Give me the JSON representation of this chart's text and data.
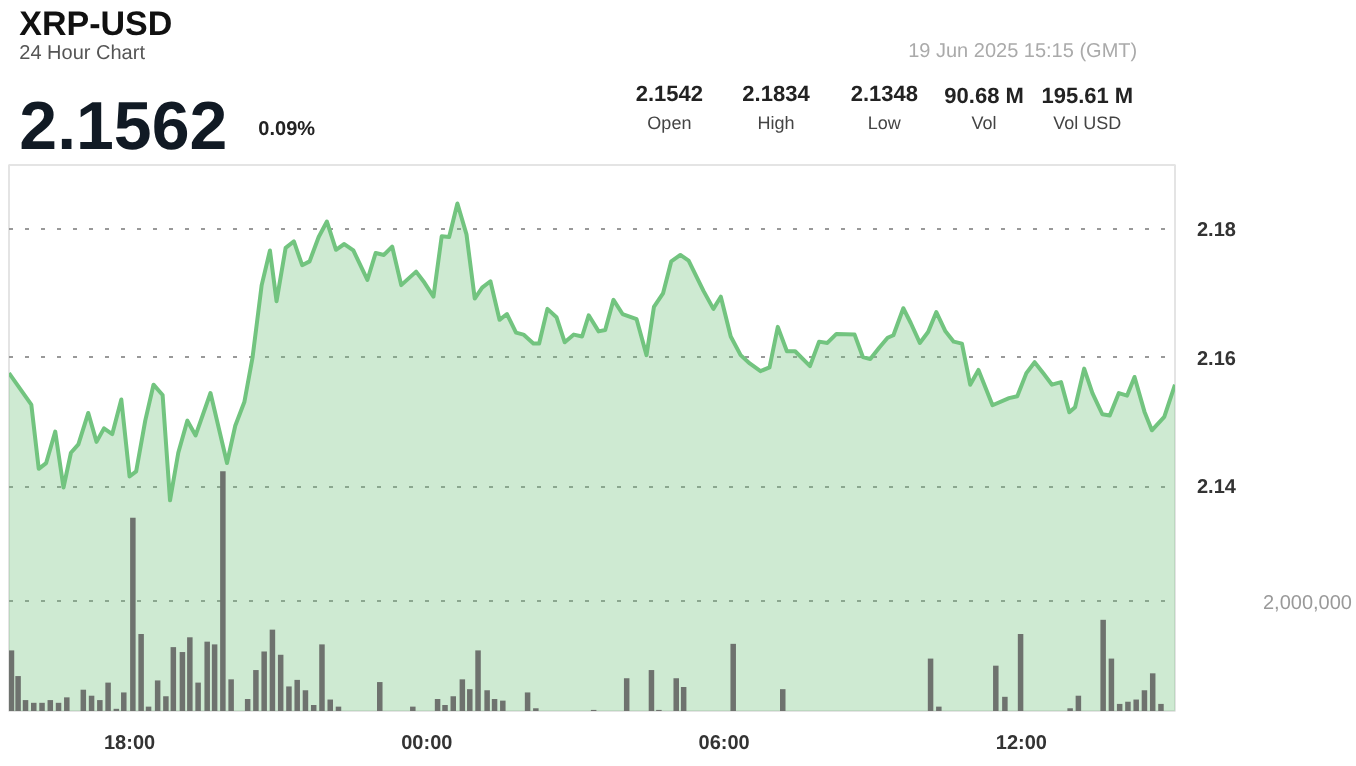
{
  "chart_data": {
    "type": "area",
    "title": "XRP-USD",
    "subtitle": "24 Hour Chart",
    "annotations": [
      "2.1562",
      "0.09%",
      "19 Jun 2025 15:15 (GMT)",
      "2.1542",
      "Open",
      "2.1834",
      "High",
      "2.1348",
      "Low",
      "90.68 M",
      "Vol",
      "195.61 M",
      "Vol USD"
    ],
    "xlim": [
      "2025-06-18T15:34",
      "2025-06-19T15:06"
    ],
    "xticks": [
      {
        "value": "2025-06-18T18:00",
        "label": "18:00"
      },
      {
        "value": "2025-06-19T00:00",
        "label": "00:00"
      },
      {
        "value": "2025-06-19T06:00",
        "label": "06:00"
      },
      {
        "value": "2025-06-19T12:00",
        "label": "12:00"
      }
    ],
    "ylim": [
      2.105,
      2.19
    ],
    "yticks": [
      2.14,
      2.16,
      2.18
    ],
    "y2lim": [
      0,
      10000000
    ],
    "y2ticks": [
      {
        "value": 2000000,
        "label": "2,000,000"
      }
    ],
    "grid": "y",
    "series": [
      {
        "color": "#72c47f",
        "x": [
          "2025-06-18T15:34",
          "2025-06-18T16:01",
          "2025-06-18T16:10",
          "2025-06-18T16:19",
          "2025-06-18T16:30",
          "2025-06-18T16:40",
          "2025-06-18T16:49",
          "2025-06-18T16:58",
          "2025-06-18T17:10",
          "2025-06-18T17:20",
          "2025-06-18T17:29",
          "2025-06-18T17:39",
          "2025-06-18T17:50",
          "2025-06-18T18:00",
          "2025-06-18T18:08",
          "2025-06-18T18:19",
          "2025-06-18T18:29",
          "2025-06-18T18:40",
          "2025-06-18T18:49",
          "2025-06-18T18:59",
          "2025-06-18T19:10",
          "2025-06-18T19:20",
          "2025-06-18T19:38",
          "2025-06-18T19:58",
          "2025-06-18T20:08",
          "2025-06-18T20:19",
          "2025-06-18T20:29",
          "2025-06-18T20:40",
          "2025-06-18T20:50",
          "2025-06-18T20:58",
          "2025-06-18T21:09",
          "2025-06-18T21:19",
          "2025-06-18T21:29",
          "2025-06-18T21:38",
          "2025-06-18T21:49",
          "2025-06-18T21:59",
          "2025-06-18T22:10",
          "2025-06-18T22:20",
          "2025-06-18T22:31",
          "2025-06-18T22:48",
          "2025-06-18T22:58",
          "2025-06-18T23:08",
          "2025-06-18T23:18",
          "2025-06-18T23:29",
          "2025-06-18T23:47",
          "2025-06-18T23:57",
          "2025-06-19T00:08",
          "2025-06-19T00:18",
          "2025-06-19T00:27",
          "2025-06-19T00:37",
          "2025-06-19T00:48",
          "2025-06-19T00:58",
          "2025-06-19T01:07",
          "2025-06-19T01:17",
          "2025-06-19T01:28",
          "2025-06-19T01:37",
          "2025-06-19T01:48",
          "2025-06-19T01:57",
          "2025-06-19T02:09",
          "2025-06-19T02:16",
          "2025-06-19T02:26",
          "2025-06-19T02:37",
          "2025-06-19T02:47",
          "2025-06-19T02:58",
          "2025-06-19T03:08",
          "2025-06-19T03:16",
          "2025-06-19T03:28",
          "2025-06-19T03:36",
          "2025-06-19T03:46",
          "2025-06-19T03:57",
          "2025-06-19T04:14",
          "2025-06-19T04:26",
          "2025-06-19T04:35",
          "2025-06-19T04:46",
          "2025-06-19T04:56",
          "2025-06-19T05:07",
          "2025-06-19T05:17",
          "2025-06-19T05:35",
          "2025-06-19T05:47",
          "2025-06-19T05:56",
          "2025-06-19T06:08",
          "2025-06-19T06:20",
          "2025-06-19T06:31",
          "2025-06-19T06:44",
          "2025-06-19T06:55",
          "2025-06-19T07:05",
          "2025-06-19T07:16",
          "2025-06-19T07:26",
          "2025-06-19T07:44",
          "2025-06-19T07:55",
          "2025-06-19T08:05",
          "2025-06-19T08:16",
          "2025-06-19T08:38",
          "2025-06-19T08:48",
          "2025-06-19T08:57",
          "2025-06-19T09:08",
          "2025-06-19T09:18",
          "2025-06-19T09:25",
          "2025-06-19T09:37",
          "2025-06-19T09:46",
          "2025-06-19T09:57",
          "2025-06-19T10:07",
          "2025-06-19T10:17",
          "2025-06-19T10:28",
          "2025-06-19T10:38",
          "2025-06-19T10:48",
          "2025-06-19T10:58",
          "2025-06-19T11:08",
          "2025-06-19T11:25",
          "2025-06-19T11:45",
          "2025-06-19T11:55",
          "2025-06-19T12:06",
          "2025-06-19T12:16",
          "2025-06-19T12:27",
          "2025-06-19T12:37",
          "2025-06-19T12:48",
          "2025-06-19T12:58",
          "2025-06-19T13:05",
          "2025-06-19T13:16",
          "2025-06-19T13:26",
          "2025-06-19T13:38",
          "2025-06-19T13:47",
          "2025-06-19T13:58",
          "2025-06-19T14:08",
          "2025-06-19T14:17",
          "2025-06-19T14:29",
          "2025-06-19T14:38",
          "2025-06-19T14:53",
          "2025-06-19T15:06"
        ],
        "values": [
          2.1576,
          2.1527,
          2.1427,
          2.1436,
          2.1485,
          2.1398,
          2.1452,
          2.1465,
          2.1514,
          2.1469,
          2.149,
          2.1481,
          2.1535,
          2.1415,
          2.1423,
          2.1502,
          2.1558,
          2.1542,
          2.1378,
          2.1452,
          2.1502,
          2.1479,
          2.1545,
          2.1436,
          2.1494,
          2.1531,
          2.1601,
          2.1713,
          2.1767,
          2.1688,
          2.1771,
          2.1781,
          2.1744,
          2.175,
          2.1788,
          2.1812,
          2.1768,
          2.1777,
          2.1767,
          2.1721,
          2.1763,
          2.176,
          2.1773,
          2.1713,
          2.1734,
          2.1717,
          2.1695,
          2.1789,
          2.1788,
          2.184,
          2.1792,
          2.1692,
          2.1709,
          2.1719,
          2.1659,
          2.1668,
          2.1639,
          2.1636,
          2.1622,
          2.1622,
          2.1676,
          2.1663,
          2.1624,
          2.1636,
          2.1633,
          2.1666,
          2.1641,
          2.1643,
          2.169,
          2.1668,
          2.166,
          2.1604,
          2.1679,
          2.17,
          2.175,
          2.176,
          2.1751,
          2.1704,
          2.1676,
          2.1695,
          2.1633,
          2.1604,
          2.1591,
          2.1579,
          2.1585,
          2.1648,
          2.161,
          2.161,
          2.1587,
          2.1625,
          2.1623,
          2.1637,
          2.1636,
          2.1601,
          2.1598,
          2.1616,
          2.1631,
          2.1635,
          2.1677,
          2.1654,
          2.1623,
          2.164,
          2.1671,
          2.1641,
          2.1625,
          2.1622,
          2.1558,
          2.1581,
          2.1526,
          2.1537,
          2.154,
          2.1576,
          2.1593,
          2.1575,
          2.1558,
          2.1562,
          2.1515,
          2.1523,
          2.1583,
          2.1545,
          2.1512,
          2.151,
          2.1545,
          2.1541,
          2.157,
          2.1516,
          2.1487,
          2.1508,
          2.1558
        ]
      },
      {
        "type": "bar",
        "axis": "y2",
        "color": "#6e726e",
        "x": [
          "2025-06-18T15:37",
          "2025-06-18T15:45",
          "2025-06-18T15:54",
          "2025-06-18T16:04",
          "2025-06-18T16:14",
          "2025-06-18T16:24",
          "2025-06-18T16:34",
          "2025-06-18T16:44",
          "2025-06-18T17:04",
          "2025-06-18T17:14",
          "2025-06-18T17:24",
          "2025-06-18T17:34",
          "2025-06-18T17:44",
          "2025-06-18T17:53",
          "2025-06-18T18:04",
          "2025-06-18T18:14",
          "2025-06-18T18:23",
          "2025-06-18T18:34",
          "2025-06-18T18:44",
          "2025-06-18T18:53",
          "2025-06-18T19:04",
          "2025-06-18T19:13",
          "2025-06-18T19:23",
          "2025-06-18T19:34",
          "2025-06-18T19:43",
          "2025-06-18T19:53",
          "2025-06-18T20:03",
          "2025-06-18T20:23",
          "2025-06-18T20:33",
          "2025-06-18T20:43",
          "2025-06-18T20:53",
          "2025-06-18T21:03",
          "2025-06-18T21:13",
          "2025-06-18T21:23",
          "2025-06-18T21:33",
          "2025-06-18T21:43",
          "2025-06-18T21:53",
          "2025-06-18T22:03",
          "2025-06-18T22:13",
          "2025-06-18T23:03",
          "2025-06-18T23:43",
          "2025-06-19T00:13",
          "2025-06-19T00:22",
          "2025-06-19T00:32",
          "2025-06-19T00:43",
          "2025-06-19T00:52",
          "2025-06-19T01:02",
          "2025-06-19T01:13",
          "2025-06-19T01:22",
          "2025-06-19T01:32",
          "2025-06-19T02:02",
          "2025-06-19T02:12",
          "2025-06-19T03:22",
          "2025-06-19T04:02",
          "2025-06-19T04:32",
          "2025-06-19T04:41",
          "2025-06-19T05:02",
          "2025-06-19T05:11",
          "2025-06-19T06:11",
          "2025-06-19T07:11",
          "2025-06-19T10:10",
          "2025-06-19T10:20",
          "2025-06-19T11:29",
          "2025-06-19T11:40",
          "2025-06-19T11:59",
          "2025-06-19T12:59",
          "2025-06-19T13:09",
          "2025-06-19T13:39",
          "2025-06-19T13:49",
          "2025-06-19T13:59",
          "2025-06-19T14:09",
          "2025-06-19T14:19",
          "2025-06-19T14:29",
          "2025-06-19T14:39",
          "2025-06-19T14:49"
        ],
        "values": [
          1110000,
          640000,
          200000,
          150000,
          150000,
          200000,
          150000,
          250000,
          390000,
          280000,
          200000,
          520000,
          40000,
          340000,
          3540000,
          1410000,
          80000,
          560000,
          270000,
          1170000,
          1080000,
          1350000,
          520000,
          1270000,
          1220000,
          4390000,
          580000,
          220000,
          750000,
          1090000,
          1490000,
          1030000,
          450000,
          570000,
          380000,
          110000,
          1220000,
          210000,
          80000,
          530000,
          80000,
          220000,
          110000,
          270000,
          580000,
          400000,
          1110000,
          380000,
          220000,
          190000,
          340000,
          50000,
          20000,
          600000,
          750000,
          20000,
          600000,
          440000,
          1230000,
          400000,
          960000,
          80000,
          830000,
          260000,
          1410000,
          50000,
          280000,
          1670000,
          960000,
          130000,
          170000,
          210000,
          380000,
          690000,
          130000
        ]
      }
    ]
  }
}
